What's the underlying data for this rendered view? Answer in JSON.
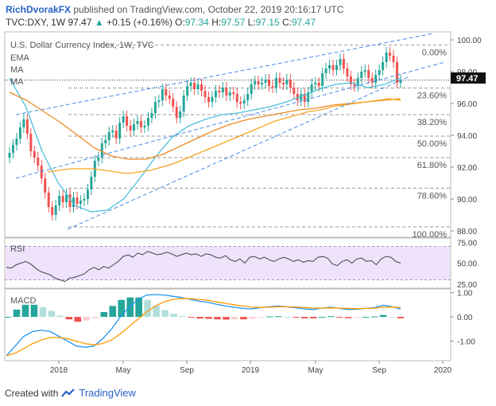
{
  "header": {
    "author": "RichDvorakFX",
    "published": "published on TradingView.com, October 22, 2019 20:16:17 UTC",
    "symbol": "TVC:DXY, 1W",
    "last": "97.47",
    "change": "+0.15 (+0.16%)",
    "open_label": "O:",
    "open": "97.34",
    "high_label": "H:",
    "high": "97.57",
    "low_label": "L:",
    "low": "97.15",
    "close_label": "C:",
    "close": "97.47"
  },
  "footer": {
    "created_with": "Created with",
    "brand": "TradingView"
  },
  "colors": {
    "up": "#26a69a",
    "down": "#ef5350",
    "ema": "#f5a623",
    "ma1": "#4bc0d9",
    "ma2": "#f08a24",
    "rsi": "#444444",
    "macd": "#2196f3",
    "signal": "#ff9800"
  },
  "chart_data": [
    {
      "type": "line",
      "title": "U.S. Dollar Currency Index, 1W, TVC",
      "legend": [
        "EMA",
        "MA",
        "MA"
      ],
      "x_ticks": [
        "2018",
        "May",
        "Sep",
        "2019",
        "May",
        "Sep",
        "2020"
      ],
      "y_ticks": [
        "100.00",
        "98.00",
        "96.00",
        "94.00",
        "92.00",
        "90.00",
        "88.00"
      ],
      "ylim": [
        87.6,
        100.5
      ],
      "price_tag": "97.47",
      "fib_levels": [
        {
          "label": "0.00%",
          "value": 99.67
        },
        {
          "label": "23.60%",
          "value": 96.97
        },
        {
          "label": "38.20%",
          "value": 95.3
        },
        {
          "label": "50.00%",
          "value": 93.95
        },
        {
          "label": "61.80%",
          "value": 92.6
        },
        {
          "label": "78.60%",
          "value": 90.68
        },
        {
          "label": "100.00%",
          "value": 88.25
        }
      ],
      "candle_closes": [
        92.9,
        93.4,
        93.8,
        94.5,
        95.0,
        94.1,
        93.0,
        92.6,
        92.1,
        91.3,
        90.4,
        89.5,
        89.0,
        89.6,
        90.2,
        89.8,
        90.3,
        89.5,
        90.1,
        89.7,
        89.9,
        90.0,
        90.6,
        91.4,
        92.4,
        92.6,
        93.5,
        93.7,
        94.2,
        94.3,
        93.8,
        94.8,
        95.2,
        94.6,
        94.3,
        94.7,
        94.9,
        94.5,
        94.6,
        95.1,
        95.4,
        96.1,
        96.2,
        96.9,
        96.5,
        96.3,
        95.8,
        95.1,
        95.5,
        96.5,
        97.1,
        97.3,
        96.9,
        97.2,
        96.8,
        96.4,
        96.1,
        96.4,
        96.8,
        96.7,
        97.0,
        96.5,
        96.7,
        96.6,
        96.1,
        96.0,
        96.2,
        96.6,
        97.2,
        97.4,
        97.2,
        97.3,
        97.5,
        97.1,
        97.0,
        97.6,
        97.3,
        97.2,
        97.5,
        97.0,
        96.6,
        96.2,
        96.6,
        96.1,
        96.7,
        97.2,
        97.3,
        97.1,
        97.9,
        98.2,
        98.4,
        98.1,
        98.4,
        98.8,
        98.2,
        97.7,
        97.2,
        97.1,
        97.6,
        98.0,
        98.1,
        97.6,
        97.3,
        97.8,
        98.1,
        98.6,
        99.2,
        99.0,
        98.6,
        97.3,
        97.47
      ],
      "ema": [
        91.7,
        91.8,
        91.9,
        91.9,
        91.9,
        91.8,
        91.7,
        91.6,
        91.7,
        91.8,
        92.0,
        92.2,
        92.5,
        92.8,
        93.1,
        93.4,
        93.7,
        94.0,
        94.3,
        94.6,
        94.9,
        95.1,
        95.3,
        95.5,
        95.6,
        95.8,
        95.9,
        96.0,
        96.1,
        96.2,
        96.3,
        96.2
      ],
      "ma1": [
        97.6,
        95.8,
        93.0,
        91.0,
        89.6,
        89.2,
        89.3,
        90.0,
        91.3,
        92.7,
        93.9,
        94.6,
        95.0,
        95.3,
        95.4,
        95.6,
        95.8,
        96.1,
        96.5,
        96.9,
        97.2,
        97.3,
        97.0,
        97.2,
        97.6
      ],
      "ma2": [
        96.7,
        96.2,
        95.5,
        94.8,
        94.0,
        93.2,
        92.7,
        92.5,
        92.5,
        92.8,
        93.3,
        93.8,
        94.3,
        94.7,
        95.0,
        95.2,
        95.4,
        95.6,
        95.7,
        95.9,
        96.0,
        96.1,
        96.2,
        96.3
      ]
    },
    {
      "type": "line",
      "title": "RSI",
      "y_ticks": [
        "75.00",
        "50.00",
        "25.00"
      ],
      "ylim": [
        20,
        80
      ],
      "band": [
        30,
        70
      ],
      "values": [
        45,
        44,
        48,
        50,
        52,
        49,
        44,
        40,
        38,
        36,
        32,
        30,
        28,
        32,
        33,
        35,
        37,
        42,
        45,
        42,
        46,
        44,
        48,
        52,
        58,
        60,
        57,
        62,
        60,
        64,
        62,
        60,
        61,
        63,
        61,
        58,
        60,
        62,
        60,
        61,
        58,
        61,
        60,
        57,
        56,
        59,
        54,
        52,
        55,
        50,
        57,
        58,
        55,
        57,
        54,
        52,
        55,
        57,
        55,
        52,
        54,
        51,
        53,
        52,
        57,
        58,
        56,
        49,
        47,
        52,
        54,
        50,
        55,
        56,
        52,
        53,
        48,
        55,
        58,
        57,
        52,
        50
      ]
    },
    {
      "type": "line",
      "title": "MACD",
      "y_ticks": [
        "1.00",
        "0.00",
        "-1.00"
      ],
      "ylim": [
        -1.8,
        1.15
      ],
      "macd": [
        -1.6,
        -1.2,
        -0.8,
        -0.6,
        -0.55,
        -0.6,
        -0.8,
        -1.0,
        -1.2,
        -1.25,
        -1.2,
        -0.9,
        -0.5,
        0.0,
        0.4,
        0.7,
        0.9,
        0.92,
        0.9,
        0.85,
        0.8,
        0.72,
        0.65,
        0.6,
        0.52,
        0.45,
        0.4,
        0.35,
        0.33,
        0.38,
        0.42,
        0.45,
        0.42,
        0.38,
        0.33,
        0.3,
        0.36,
        0.4,
        0.35,
        0.3,
        0.32,
        0.35,
        0.38,
        0.48,
        0.42,
        0.32
      ],
      "signal": [
        -1.6,
        -1.5,
        -1.3,
        -1.1,
        -0.95,
        -0.85,
        -0.85,
        -0.9,
        -1.0,
        -1.1,
        -1.15,
        -1.1,
        -0.95,
        -0.7,
        -0.4,
        -0.1,
        0.2,
        0.45,
        0.62,
        0.72,
        0.76,
        0.75,
        0.72,
        0.68,
        0.62,
        0.56,
        0.5,
        0.45,
        0.41,
        0.39,
        0.4,
        0.42,
        0.42,
        0.41,
        0.39,
        0.36,
        0.36,
        0.37,
        0.36,
        0.35,
        0.34,
        0.35,
        0.36,
        0.4,
        0.41,
        0.38
      ],
      "histogram": [
        0,
        0.3,
        0.5,
        0.5,
        0.4,
        0.25,
        0.05,
        -0.1,
        -0.2,
        -0.15,
        -0.05,
        0.2,
        0.45,
        0.7,
        0.8,
        0.8,
        0.7,
        0.47,
        0.28,
        0.13,
        0.04,
        -0.03,
        -0.07,
        -0.08,
        -0.1,
        -0.11,
        -0.1,
        -0.1,
        -0.08,
        -0.01,
        0.02,
        0.03,
        0,
        -0.03,
        -0.06,
        -0.06,
        0,
        0.03,
        -0.01,
        -0.05,
        -0.02,
        0,
        0.02,
        0.08,
        0.01,
        -0.06
      ]
    }
  ]
}
